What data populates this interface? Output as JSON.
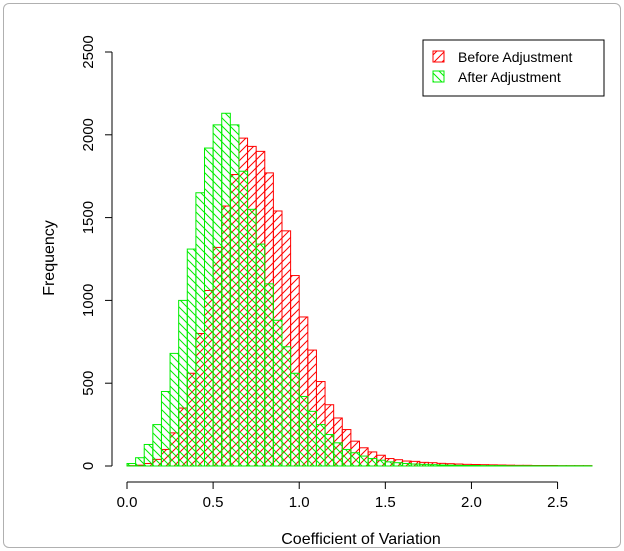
{
  "chart_data": {
    "type": "histogram",
    "xlabel": "Coefficient of Variation",
    "ylabel": "Frequency",
    "xlim": [
      0,
      2.7
    ],
    "ylim": [
      0,
      2500
    ],
    "x_ticks": [
      "0.0",
      "0.5",
      "1.0",
      "1.5",
      "2.0",
      "2.5"
    ],
    "y_ticks": [
      "0",
      "500",
      "1000",
      "1500",
      "2000",
      "2500"
    ],
    "bin_width": 0.05,
    "legend_position": "top-right",
    "series": [
      {
        "name": "Before Adjustment",
        "color": "#ff0000",
        "hatch": "diagonal-up",
        "bin_starts": [
          0.0,
          0.05,
          0.1,
          0.15,
          0.2,
          0.25,
          0.3,
          0.35,
          0.4,
          0.45,
          0.5,
          0.55,
          0.6,
          0.65,
          0.7,
          0.75,
          0.8,
          0.85,
          0.9,
          0.95,
          1.0,
          1.05,
          1.1,
          1.15,
          1.2,
          1.25,
          1.3,
          1.35,
          1.4,
          1.45,
          1.5,
          1.55,
          1.6,
          1.65,
          1.7,
          1.75,
          1.8,
          1.85,
          1.9,
          1.95,
          2.0,
          2.05,
          2.1,
          2.15,
          2.2,
          2.25,
          2.3,
          2.35,
          2.4,
          2.45,
          2.5,
          2.55,
          2.6,
          2.65
        ],
        "counts": [
          2,
          5,
          15,
          40,
          100,
          200,
          350,
          560,
          800,
          1060,
          1320,
          1570,
          1760,
          1980,
          1930,
          1900,
          1770,
          1540,
          1420,
          1150,
          900,
          700,
          510,
          370,
          290,
          220,
          150,
          110,
          85,
          65,
          45,
          38,
          30,
          28,
          22,
          20,
          16,
          14,
          12,
          10,
          9,
          8,
          7,
          6,
          5,
          4,
          4,
          3,
          3,
          3,
          2,
          2,
          2,
          2
        ]
      },
      {
        "name": "After Adjustment",
        "color": "#00ee00",
        "hatch": "diagonal-down",
        "bin_starts": [
          0.0,
          0.05,
          0.1,
          0.15,
          0.2,
          0.25,
          0.3,
          0.35,
          0.4,
          0.45,
          0.5,
          0.55,
          0.6,
          0.65,
          0.7,
          0.75,
          0.8,
          0.85,
          0.9,
          0.95,
          1.0,
          1.05,
          1.1,
          1.15,
          1.2,
          1.25,
          1.3,
          1.35,
          1.4,
          1.45,
          1.5,
          1.55,
          1.6,
          1.65,
          1.7,
          1.75,
          1.8,
          1.85,
          1.9,
          1.95,
          2.0,
          2.05,
          2.1,
          2.15,
          2.2,
          2.25,
          2.3,
          2.35,
          2.4,
          2.45,
          2.5,
          2.55,
          2.6,
          2.65
        ],
        "counts": [
          15,
          50,
          130,
          250,
          450,
          680,
          1000,
          1310,
          1650,
          1920,
          2060,
          2130,
          2060,
          1780,
          1550,
          1340,
          1100,
          880,
          720,
          560,
          420,
          330,
          250,
          190,
          140,
          100,
          80,
          60,
          45,
          35,
          25,
          20,
          15,
          12,
          10,
          8,
          6,
          5,
          4,
          3,
          3,
          2,
          2,
          2,
          1,
          1,
          1,
          1,
          1,
          1,
          1,
          1,
          1,
          1
        ]
      }
    ]
  }
}
